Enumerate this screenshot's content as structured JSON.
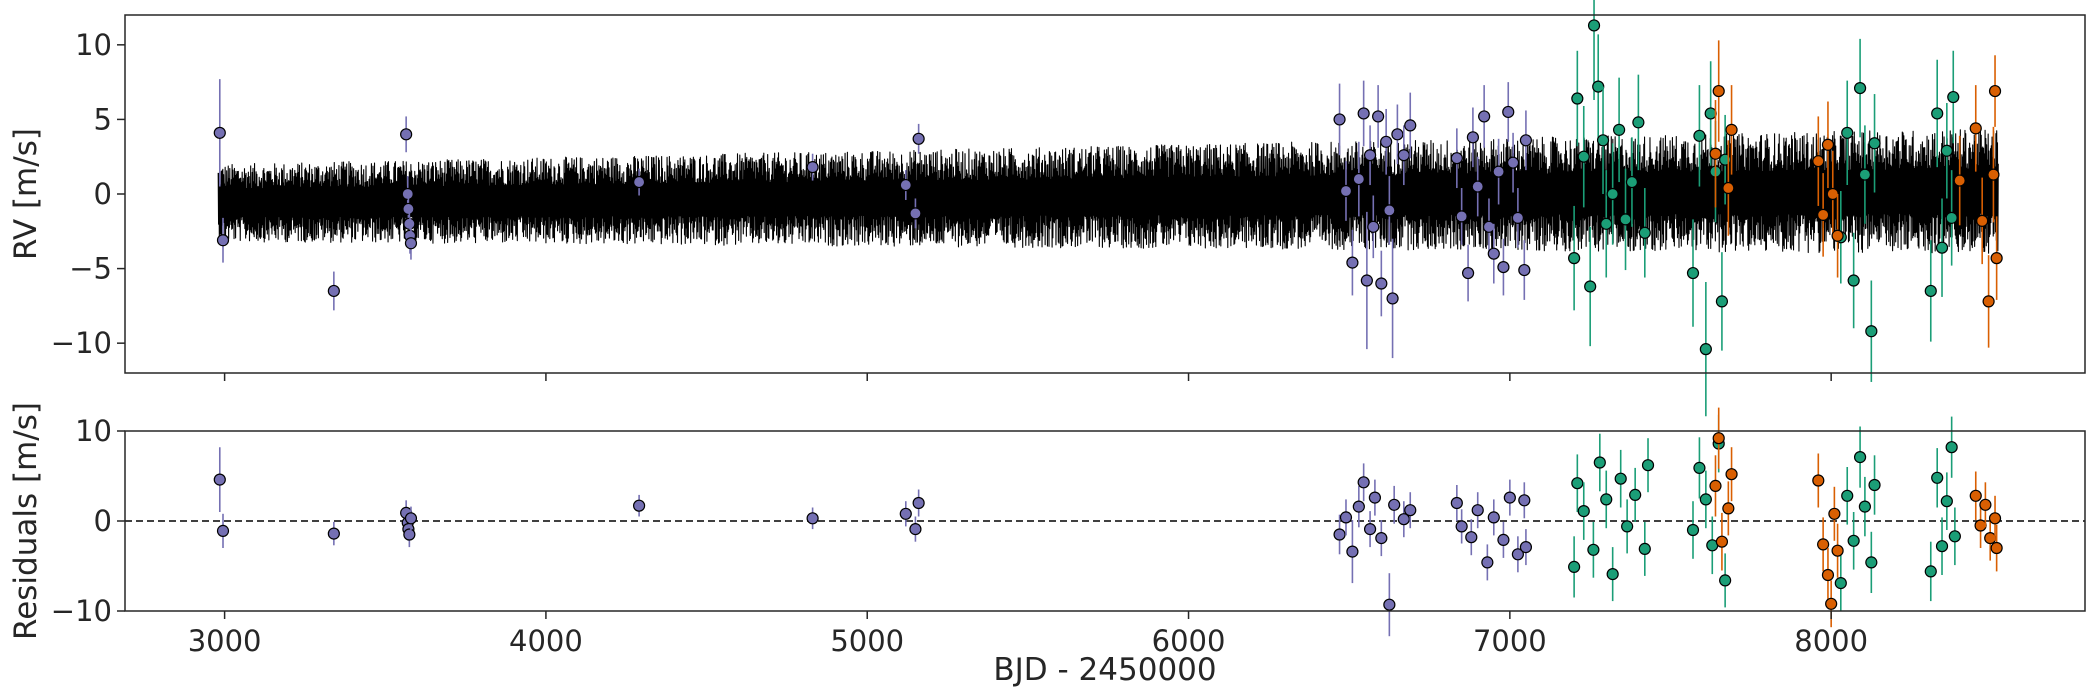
{
  "chart_data": [
    {
      "type": "scatter",
      "panel": "top",
      "ylabel": "RV [m/s]",
      "xlabel": "",
      "xlim": [
        2690,
        8790
      ],
      "ylim": [
        -12,
        12
      ],
      "x_ticks": [
        3000,
        4000,
        5000,
        6000,
        7000,
        8000
      ],
      "x_tick_labels_shown": false,
      "y_ticks": [
        -10,
        -5,
        0,
        5,
        10
      ],
      "y_tick_labels": [
        "−10",
        "−5",
        "0",
        "5",
        "10"
      ],
      "grid": false,
      "legend": "none",
      "model": {
        "type": "line",
        "color": "#000000",
        "description": "dense oscillating model curve",
        "x_range": [
          2980,
          8520
        ],
        "amplitude_envelope": [
          [
            2980,
            2.6
          ],
          [
            6000,
            3.5
          ],
          [
            8500,
            4.2
          ]
        ],
        "baseline": [
          [
            2980,
            -0.6
          ],
          [
            8520,
            0.2
          ]
        ]
      },
      "series": [
        {
          "color": "#7570b3",
          "points": [
            [
              2985,
              4.1,
              3.6
            ],
            [
              2995,
              -3.1,
              1.5
            ],
            [
              3340,
              -6.5,
              1.3
            ],
            [
              3565,
              4.0,
              1.2
            ],
            [
              3570,
              0.0,
              1.2
            ],
            [
              3572,
              -1.0,
              1.1
            ],
            [
              3575,
              -2.0,
              1.1
            ],
            [
              3577,
              -2.8,
              1.2
            ],
            [
              3580,
              -3.3,
              1.1
            ],
            [
              4290,
              0.8,
              0.9
            ],
            [
              4830,
              1.8,
              0.9
            ],
            [
              5120,
              0.6,
              1.0
            ],
            [
              5150,
              -1.3,
              1.0
            ],
            [
              5160,
              3.7,
              1.0
            ],
            [
              6470,
              5.0,
              2.4
            ],
            [
              6490,
              0.2,
              2.0
            ],
            [
              6510,
              -4.6,
              2.2
            ],
            [
              6530,
              1.0,
              2.5
            ],
            [
              6545,
              5.4,
              2.2
            ],
            [
              6555,
              -5.8,
              4.6
            ],
            [
              6565,
              2.6,
              2.0
            ],
            [
              6575,
              -2.2,
              2.1
            ],
            [
              6590,
              5.2,
              2.1
            ],
            [
              6600,
              -6.0,
              2.2
            ],
            [
              6615,
              3.5,
              2.2
            ],
            [
              6625,
              -1.1,
              2.3
            ],
            [
              6635,
              -7.0,
              4.0
            ],
            [
              6650,
              4.0,
              2.0
            ],
            [
              6670,
              2.6,
              2.0
            ],
            [
              6690,
              4.6,
              2.2
            ],
            [
              6835,
              2.4,
              2.0
            ],
            [
              6850,
              -1.5,
              1.9
            ],
            [
              6870,
              -5.3,
              1.9
            ],
            [
              6885,
              3.8,
              2.0
            ],
            [
              6900,
              0.5,
              2.0
            ],
            [
              6920,
              5.2,
              2.1
            ],
            [
              6935,
              -2.2,
              1.9
            ],
            [
              6950,
              -4.0,
              2.0
            ],
            [
              6965,
              1.5,
              2.2
            ],
            [
              6980,
              -4.9,
              1.9
            ],
            [
              6995,
              5.5,
              2.0
            ],
            [
              7010,
              2.1,
              2.0
            ],
            [
              7025,
              -1.6,
              2.0
            ],
            [
              7045,
              -5.1,
              2.0
            ],
            [
              7050,
              3.6,
              2.0
            ]
          ]
        },
        {
          "color": "#1b9e77",
          "points": [
            [
              7200,
              -4.3,
              3.5
            ],
            [
              7210,
              6.4,
              3.2
            ],
            [
              7230,
              2.5,
              3.4
            ],
            [
              7250,
              -6.2,
              4.0
            ],
            [
              7262,
              11.3,
              5.0
            ],
            [
              7275,
              7.2,
              3.5
            ],
            [
              7290,
              3.6,
              3.6
            ],
            [
              7300,
              -2.0,
              3.6
            ],
            [
              7320,
              0.0,
              3.4
            ],
            [
              7340,
              4.3,
              3.5
            ],
            [
              7360,
              -1.7,
              3.4
            ],
            [
              7380,
              0.8,
              3.0
            ],
            [
              7400,
              4.8,
              3.2
            ],
            [
              7420,
              -2.6,
              3.0
            ],
            [
              7570,
              -5.3,
              3.6
            ],
            [
              7590,
              3.9,
              3.4
            ],
            [
              7610,
              -10.4,
              4.5
            ],
            [
              7625,
              5.4,
              3.5
            ],
            [
              7640,
              1.5,
              3.4
            ],
            [
              7660,
              -7.2,
              3.3
            ],
            [
              7670,
              2.3,
              3.0
            ],
            [
              8030,
              -2.9,
              3.1
            ],
            [
              8050,
              4.1,
              3.5
            ],
            [
              8070,
              -5.8,
              3.2
            ],
            [
              8090,
              7.1,
              3.3
            ],
            [
              8105,
              1.3,
              3.3
            ],
            [
              8125,
              -9.2,
              3.4
            ],
            [
              8135,
              3.4,
              3.3
            ],
            [
              8310,
              -6.5,
              3.4
            ],
            [
              8330,
              5.4,
              3.6
            ],
            [
              8345,
              -3.6,
              3.3
            ],
            [
              8360,
              2.9,
              3.2
            ],
            [
              8375,
              -1.6,
              3.2
            ],
            [
              8380,
              6.5,
              3.1
            ]
          ]
        },
        {
          "color": "#d95f02",
          "points": [
            [
              7640,
              2.7,
              3.6
            ],
            [
              7650,
              6.9,
              3.4
            ],
            [
              7680,
              0.4,
              3.2
            ],
            [
              7690,
              4.3,
              3.0
            ],
            [
              7960,
              2.2,
              3.0
            ],
            [
              7975,
              -1.4,
              2.8
            ],
            [
              7990,
              3.3,
              2.9
            ],
            [
              8005,
              0.0,
              2.9
            ],
            [
              8020,
              -2.8,
              2.8
            ],
            [
              8400,
              0.9,
              3.0
            ],
            [
              8450,
              4.4,
              2.9
            ],
            [
              8470,
              -1.8,
              2.9
            ],
            [
              8490,
              -7.2,
              3.1
            ],
            [
              8505,
              1.3,
              3.2
            ],
            [
              8510,
              6.9,
              2.4
            ],
            [
              8515,
              -4.3,
              2.8
            ]
          ]
        }
      ]
    },
    {
      "type": "scatter",
      "panel": "bottom",
      "ylabel": "Residuals [m/s]",
      "xlabel": "BJD - 2450000",
      "xlim": [
        2690,
        8790
      ],
      "ylim": [
        -10,
        10
      ],
      "x_ticks": [
        3000,
        4000,
        5000,
        6000,
        7000,
        8000
      ],
      "x_tick_labels": [
        "3000",
        "4000",
        "5000",
        "6000",
        "7000",
        "8000"
      ],
      "y_ticks": [
        -10,
        0,
        10
      ],
      "y_tick_labels": [
        "−10",
        "0",
        "10"
      ],
      "grid": false,
      "legend": "none",
      "reference_line": {
        "y": 0,
        "style": "dashed",
        "color": "#000000"
      },
      "series": [
        {
          "color": "#7570b3",
          "points": [
            [
              2985,
              4.6,
              3.6
            ],
            [
              2995,
              -1.1,
              1.9
            ],
            [
              3340,
              -1.4,
              1.3
            ],
            [
              3565,
              0.9,
              1.4
            ],
            [
              3570,
              -0.2,
              1.3
            ],
            [
              3572,
              -0.9,
              1.3
            ],
            [
              3575,
              -1.5,
              1.4
            ],
            [
              3580,
              0.3,
              1.3
            ],
            [
              4290,
              1.7,
              1.2
            ],
            [
              4830,
              0.3,
              1.2
            ],
            [
              5120,
              0.8,
              1.4
            ],
            [
              5150,
              -0.9,
              1.4
            ],
            [
              5160,
              2.0,
              1.5
            ],
            [
              6470,
              -1.5,
              2.2
            ],
            [
              6490,
              0.4,
              2.0
            ],
            [
              6510,
              -3.4,
              3.5
            ],
            [
              6530,
              1.6,
              2.3
            ],
            [
              6545,
              4.3,
              2.1
            ],
            [
              6565,
              -0.9,
              2.0
            ],
            [
              6580,
              2.6,
              2.0
            ],
            [
              6600,
              -1.9,
              2.0
            ],
            [
              6625,
              -9.3,
              3.5
            ],
            [
              6640,
              1.8,
              2.1
            ],
            [
              6670,
              0.2,
              2.0
            ],
            [
              6690,
              1.2,
              2.0
            ],
            [
              6835,
              2.0,
              2.0
            ],
            [
              6850,
              -0.6,
              1.9
            ],
            [
              6880,
              -1.8,
              2.0
            ],
            [
              6900,
              1.2,
              2.0
            ],
            [
              6930,
              -4.6,
              2.0
            ],
            [
              6950,
              0.4,
              2.0
            ],
            [
              6980,
              -2.1,
              2.0
            ],
            [
              7000,
              2.6,
              2.0
            ],
            [
              7025,
              -3.7,
              2.0
            ],
            [
              7045,
              2.3,
              2.0
            ],
            [
              7050,
              -2.9,
              2.0
            ]
          ]
        },
        {
          "color": "#1b9e77",
          "points": [
            [
              7200,
              -5.1,
              3.4
            ],
            [
              7210,
              4.2,
              3.2
            ],
            [
              7230,
              1.1,
              3.2
            ],
            [
              7260,
              -3.2,
              3.1
            ],
            [
              7280,
              6.5,
              3.2
            ],
            [
              7300,
              2.4,
              3.2
            ],
            [
              7320,
              -5.9,
              3.0
            ],
            [
              7345,
              4.7,
              3.2
            ],
            [
              7365,
              -0.6,
              3.0
            ],
            [
              7390,
              2.9,
              3.0
            ],
            [
              7420,
              -3.1,
              3.0
            ],
            [
              7430,
              6.2,
              3.0
            ],
            [
              7570,
              -1.0,
              3.2
            ],
            [
              7590,
              5.9,
              3.4
            ],
            [
              7610,
              2.4,
              3.2
            ],
            [
              7630,
              -2.7,
              3.2
            ],
            [
              7650,
              8.6,
              3.2
            ],
            [
              7670,
              -6.6,
              3.0
            ],
            [
              8030,
              -6.9,
              3.1
            ],
            [
              8050,
              2.8,
              3.2
            ],
            [
              8070,
              -2.2,
              3.2
            ],
            [
              8090,
              7.1,
              3.4
            ],
            [
              8105,
              1.6,
              3.3
            ],
            [
              8125,
              -4.6,
              3.4
            ],
            [
              8135,
              4.0,
              3.3
            ],
            [
              8310,
              -5.6,
              3.3
            ],
            [
              8330,
              4.8,
              3.3
            ],
            [
              8345,
              -2.8,
              3.2
            ],
            [
              8360,
              2.2,
              3.2
            ],
            [
              8375,
              8.2,
              3.4
            ],
            [
              8385,
              -1.7,
              3.2
            ]
          ]
        },
        {
          "color": "#d95f02",
          "points": [
            [
              7640,
              3.9,
              3.4
            ],
            [
              7650,
              9.2,
              3.4
            ],
            [
              7660,
              -2.3,
              3.2
            ],
            [
              7680,
              1.4,
              3.0
            ],
            [
              7690,
              5.2,
              3.0
            ],
            [
              7960,
              4.5,
              3.0
            ],
            [
              7975,
              -2.6,
              3.0
            ],
            [
              7990,
              -6.0,
              3.0
            ],
            [
              8000,
              -9.2,
              2.6
            ],
            [
              8010,
              0.8,
              3.0
            ],
            [
              8020,
              -3.3,
              3.0
            ],
            [
              8450,
              2.8,
              2.7
            ],
            [
              8465,
              -0.5,
              2.5
            ],
            [
              8480,
              1.8,
              2.5
            ],
            [
              8495,
              -1.9,
              2.5
            ],
            [
              8510,
              0.3,
              2.5
            ],
            [
              8515,
              -3.0,
              2.6
            ]
          ]
        }
      ]
    }
  ]
}
